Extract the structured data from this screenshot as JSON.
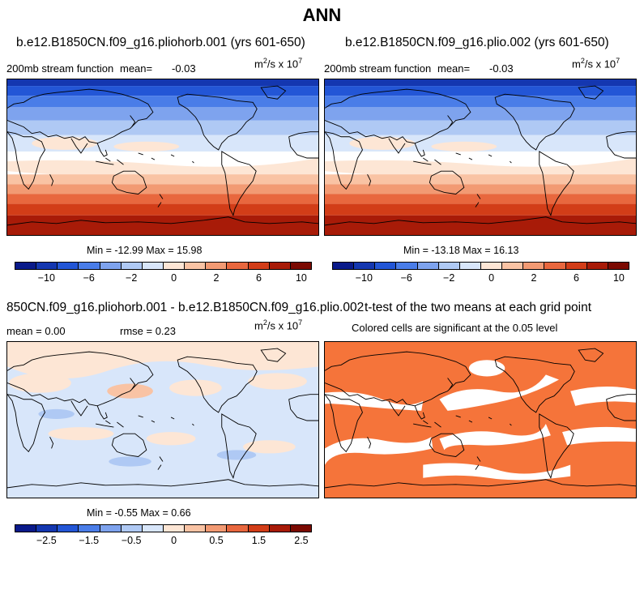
{
  "title": "ANN",
  "panels": [
    {
      "title": "b.e12.B1850CN.f09_g16.pliohorb.001 (yrs 601-650)",
      "left_label": "200mb stream function",
      "mean_label": "mean=",
      "mean_value": "-0.03",
      "units_base": "m",
      "units_exp": "2",
      "units_mid": "/s x 10",
      "units_exp2": "7",
      "stats": "Min = -12.99 Max =  15.98"
    },
    {
      "title": "b.e12.B1850CN.f09_g16.plio.002 (yrs 601-650)",
      "left_label": "200mb stream function",
      "mean_label": "mean=",
      "mean_value": "-0.03",
      "units_base": "m",
      "units_exp": "2",
      "units_mid": "/s x 10",
      "units_exp2": "7",
      "stats": "Min = -13.18 Max =  16.13"
    },
    {
      "title": "850CN.f09_g16.pliohorb.001 - b.e12.B1850CN.f09_g16.plio.002",
      "mean_text": "mean =   0.00",
      "rmse_text": "rmse =   0.23",
      "units_base": "m",
      "units_exp": "2",
      "units_mid": "/s x 10",
      "units_exp2": "7",
      "stats": "Min = -0.55 Max =  0.66"
    },
    {
      "title": "t-test of the two means at each grid point",
      "subtitle": "Colored cells are significant at the 0.05 level"
    }
  ],
  "colorbar_main": {
    "colors": [
      "#0a1a8a",
      "#1437b0",
      "#2356d6",
      "#4a7de8",
      "#7ea3ee",
      "#afc9f4",
      "#d8e6fa",
      "#fde6d5",
      "#f9c3a4",
      "#f29a73",
      "#e8673e",
      "#d23d18",
      "#a81b08",
      "#7b0a02"
    ],
    "tick_labels": [
      "-10",
      "-6",
      "-2",
      "0",
      "2",
      "6",
      "10"
    ]
  },
  "colorbar_diff": {
    "colors": [
      "#0a1a8a",
      "#1437b0",
      "#2356d6",
      "#4a7de8",
      "#7ea3ee",
      "#afc9f4",
      "#d8e6fa",
      "#fde6d5",
      "#f9c3a4",
      "#f29a73",
      "#e8673e",
      "#d23d18",
      "#a81b08",
      "#7b0a02"
    ],
    "tick_labels": [
      "-2.5",
      "-1.5",
      "-0.5",
      "0",
      "0.5",
      "1.5",
      "2.5"
    ]
  },
  "chart_data": [
    {
      "type": "heatmap",
      "title": "b.e12.B1850CN.f09_g16.pliohorb.001 (yrs 601-650)",
      "variable": "200mb stream function",
      "units": "m2/s x 10^7",
      "mean": -0.03,
      "min": -12.99,
      "max": 15.98,
      "colorbar_ticks": [
        -10,
        -6,
        -2,
        0,
        2,
        6,
        10
      ]
    },
    {
      "type": "heatmap",
      "title": "b.e12.B1850CN.f09_g16.plio.002 (yrs 601-650)",
      "variable": "200mb stream function",
      "units": "m2/s x 10^7",
      "mean": -0.03,
      "min": -13.18,
      "max": 16.13,
      "colorbar_ticks": [
        -10,
        -6,
        -2,
        0,
        2,
        6,
        10
      ]
    },
    {
      "type": "heatmap",
      "title": "850CN.f09_g16.pliohorb.001 - b.e12.B1850CN.f09_g16.plio.002",
      "units": "m2/s x 10^7",
      "mean": 0.0,
      "rmse": 0.23,
      "min": -0.55,
      "max": 0.66,
      "colorbar_ticks": [
        -2.5,
        -1.5,
        -0.5,
        0,
        0.5,
        1.5,
        2.5
      ]
    },
    {
      "type": "heatmap",
      "title": "t-test of the two means at each grid point",
      "subtitle": "Colored cells are significant at the 0.05 level",
      "significance_level": 0.05
    }
  ]
}
